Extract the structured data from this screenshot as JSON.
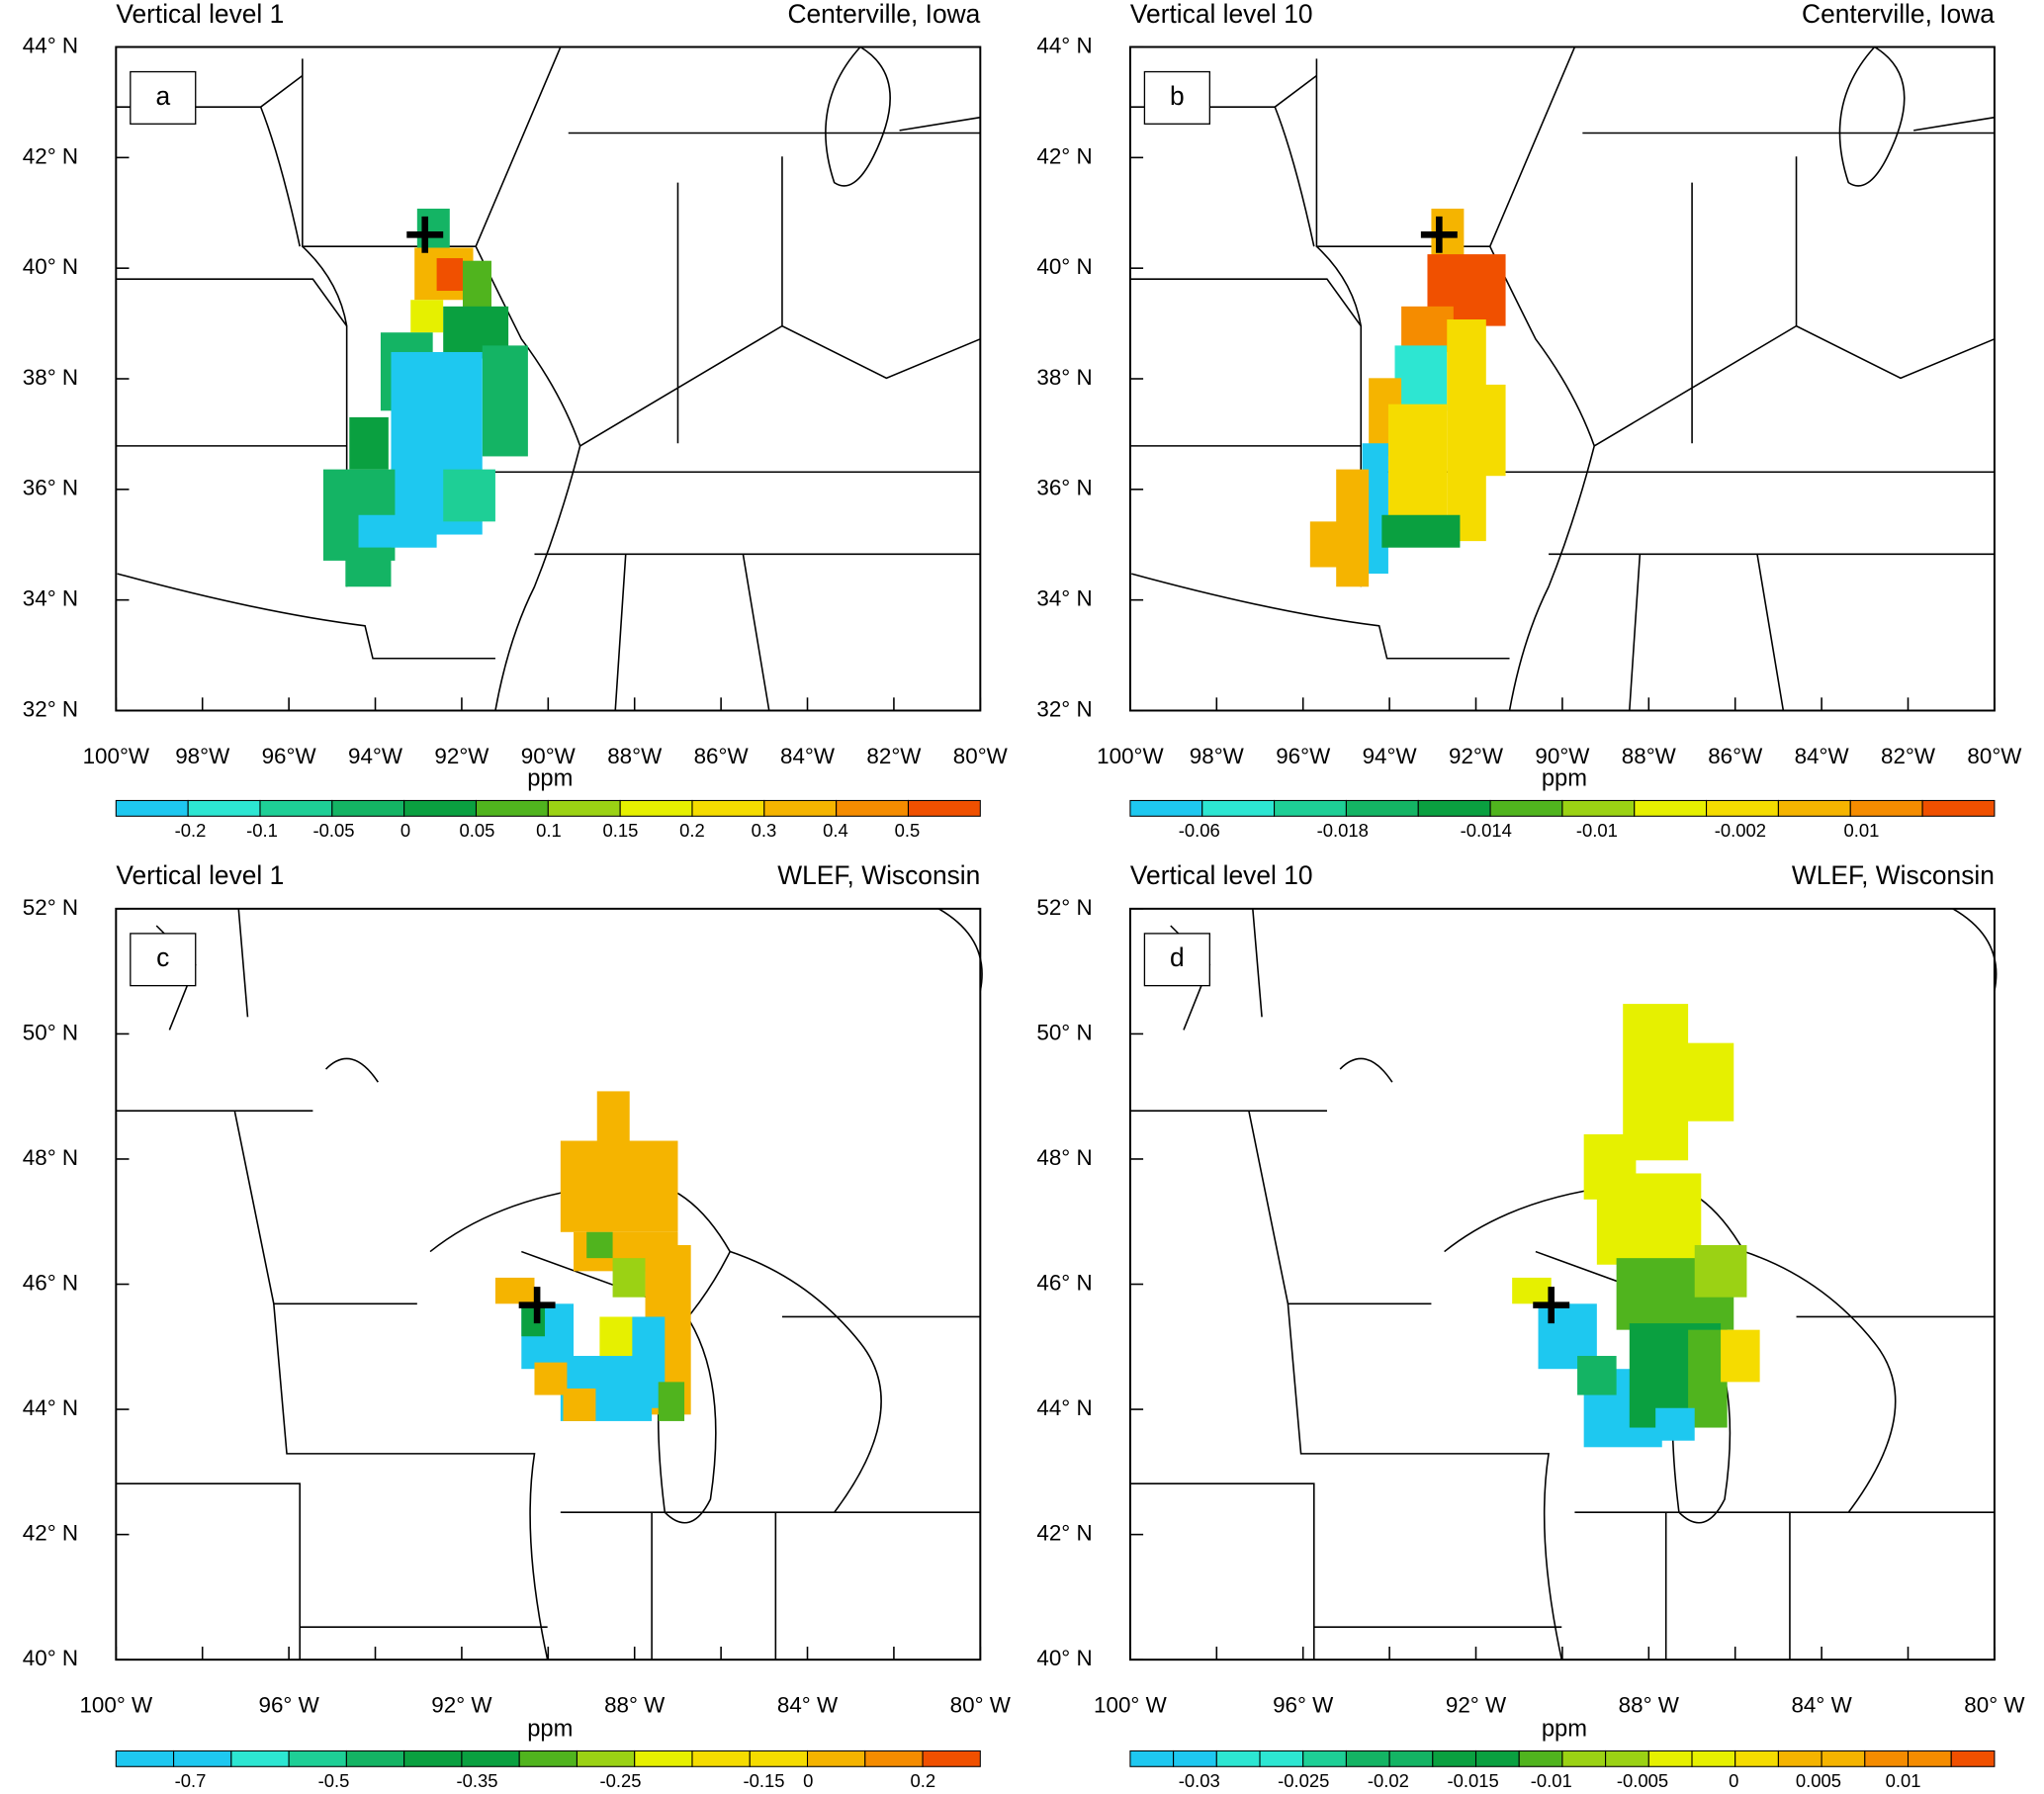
{
  "panels": [
    {
      "label": "a",
      "title_left": "Vertical level 1",
      "title_right": "Centerville, Iowa",
      "y_tick_labels": [
        "44° N",
        "42° N",
        "40° N",
        "38° N",
        "36° N",
        "34° N",
        "32° N"
      ],
      "x_tick_labels": [
        "100°W",
        "98°W",
        "96°W",
        "94°W",
        "92°W",
        "90°W",
        "88°W",
        "86°W",
        "84°W",
        "82°W",
        "80°W"
      ],
      "colorbar": {
        "unit": "ppm",
        "labels": [
          "-0.2",
          "-0.1",
          "-0.05",
          "0",
          "0.05",
          "0.1",
          "0.15",
          "0.2",
          "0.3",
          "0.4",
          "0.5"
        ]
      }
    },
    {
      "label": "b",
      "title_left": "Vertical level 10",
      "title_right": "Centerville, Iowa",
      "y_tick_labels": [
        "44° N",
        "42° N",
        "40° N",
        "38° N",
        "36° N",
        "34° N",
        "32° N"
      ],
      "x_tick_labels": [
        "100°W",
        "98°W",
        "96°W",
        "94°W",
        "92°W",
        "90°W",
        "88°W",
        "86°W",
        "84°W",
        "82°W",
        "80°W"
      ],
      "colorbar": {
        "unit": "ppm",
        "labels": [
          "-0.06",
          "-0.018",
          "-0.014",
          "-0.01",
          "-0.002",
          "0.01"
        ]
      }
    },
    {
      "label": "c",
      "title_left": "Vertical level 1",
      "title_right": "WLEF, Wisconsin",
      "y_tick_labels": [
        "52° N",
        "50° N",
        "48° N",
        "46° N",
        "44° N",
        "42° N",
        "40° N"
      ],
      "x_tick_labels": [
        "100° W",
        "96° W",
        "92° W",
        "88° W",
        "84° W",
        "80° W"
      ],
      "colorbar": {
        "unit": "ppm",
        "labels": [
          "-0.7",
          "-0.5",
          "-0.35",
          "-0.25",
          "-0.15",
          "0",
          "0.2"
        ]
      }
    },
    {
      "label": "d",
      "title_left": "Vertical level 10",
      "title_right": "WLEF, Wisconsin",
      "y_tick_labels": [
        "52° N",
        "50° N",
        "48° N",
        "46° N",
        "44° N",
        "42° N",
        "40° N"
      ],
      "x_tick_labels": [
        "100° W",
        "96° W",
        "92° W",
        "88° W",
        "84° W",
        "80° W"
      ],
      "colorbar": {
        "unit": "ppm",
        "labels": [
          "-0.03",
          "-0.025",
          "-0.02",
          "-0.015",
          "-0.01",
          "-0.005",
          "0",
          "0.005",
          "0.01"
        ]
      }
    }
  ]
}
